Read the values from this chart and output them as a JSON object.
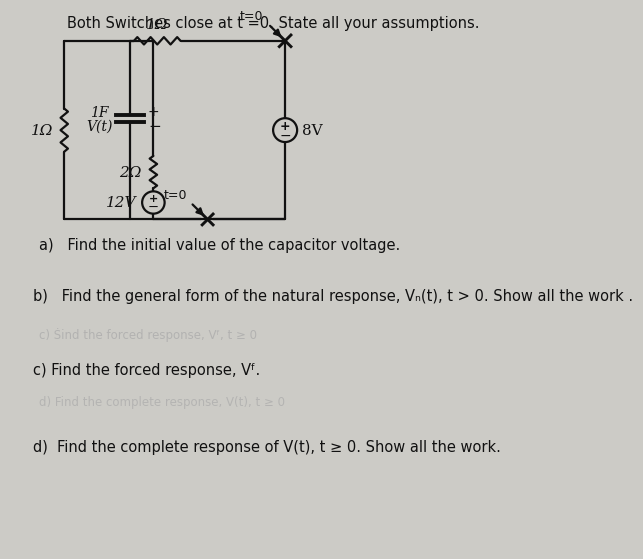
{
  "background_color": "#cccbc6",
  "title": "Both Switches close at t =0. State all your assumptions.",
  "title_fontsize": 10.5,
  "question_a": "a)   Find the initial value of the capacitor voltage.",
  "question_b": "b)   Find the general form of the natural response, Vₙ(t), t > 0. Show all the work .",
  "question_b_faded": "c) Find the forced response, Vᶠ, t ≥ 0",
  "question_c": "c) Find the forced response, Vᶠ.",
  "question_d_faded": "d) Find the complete response, V(t), t ≥ 0",
  "question_d": "d)  Find the complete response of V(t), t ≥ 0. Show all the work.",
  "resistor_top_label": "1Ω",
  "resistor_left_label": "1Ω",
  "resistor_inner_label": "2Ω",
  "cap_label": "1F",
  "cap_v_label": "V(t)",
  "vs12_label": "12V",
  "vs8_label": "8V",
  "switch_top_label": "t=0",
  "switch_bot_label": "t=0",
  "text_color": "#111111",
  "faded_color": "#aaaaaa",
  "wire_color": "#111111",
  "lw": 1.6,
  "lw_thick": 2.8
}
